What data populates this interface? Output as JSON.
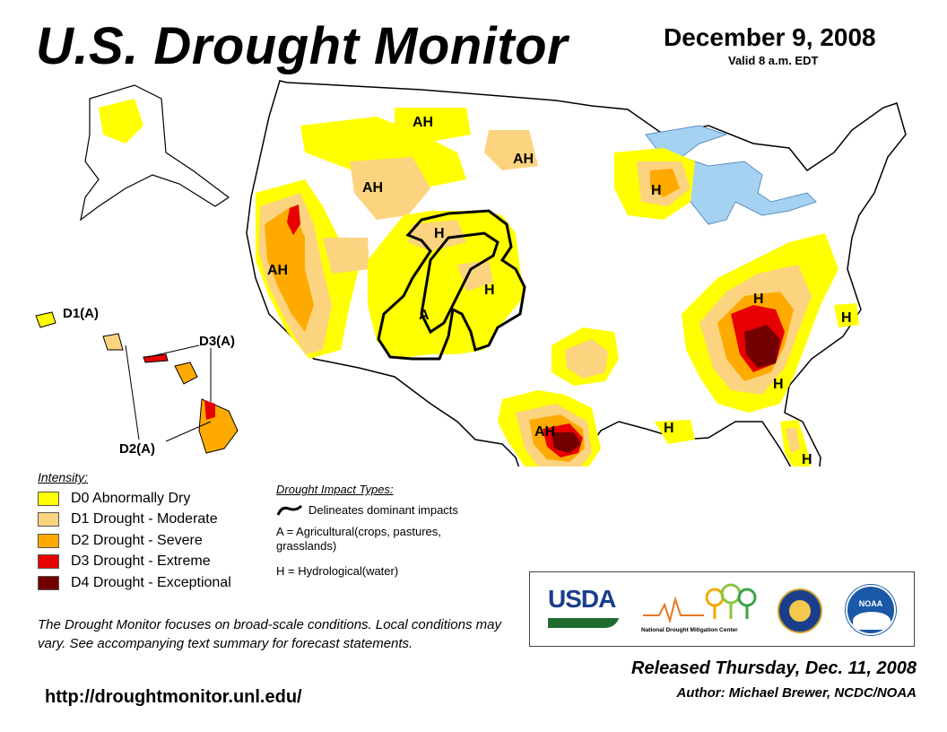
{
  "header": {
    "title": "U.S. Drought Monitor",
    "date": "December 9, 2008",
    "valid": "Valid 8 a.m. EDT"
  },
  "map_labels": {
    "ah_1": "AH",
    "ah_2": "AH",
    "ah_3": "AH",
    "ah_4": "AH",
    "ah_5": "AH",
    "h_1": "H",
    "h_2": "H",
    "h_3": "H",
    "h_4": "H",
    "h_5": "H",
    "h_6": "H",
    "h_7": "H",
    "h_8": "H",
    "a_1": "A",
    "hawaii_d1": "D1(A)",
    "hawaii_d3": "D3(A)",
    "hawaii_d2": "D2(A)"
  },
  "legend": {
    "title": "Intensity:",
    "items": [
      {
        "label": "D0 Abnormally Dry",
        "color": "#ffff00"
      },
      {
        "label": "D1 Drought - Moderate",
        "color": "#fcd37f"
      },
      {
        "label": "D2 Drought - Severe",
        "color": "#ffaa00"
      },
      {
        "label": "D3 Drought - Extreme",
        "color": "#e60000"
      },
      {
        "label": "D4 Drought - Exceptional",
        "color": "#730000"
      }
    ]
  },
  "impact": {
    "title": "Drought Impact Types:",
    "delineates": "Delineates dominant impacts",
    "agricultural": "A = Agricultural(crops, pastures, grasslands)",
    "hydrological": "H = Hydrological(water)"
  },
  "note": "The Drought Monitor focuses on broad-scale conditions. Local conditions may vary. See accompanying text summary for forecast statements.",
  "url": "http://droughtmonitor.unl.edu/",
  "logos": {
    "usda": "USDA",
    "ndmc_prefix": "National",
    "ndmc_name": "Drought Mitigation Center",
    "noaa": "NOAA"
  },
  "released": "Released Thursday, Dec. 11, 2008",
  "author": "Author: Michael Brewer, NCDC/NOAA"
}
